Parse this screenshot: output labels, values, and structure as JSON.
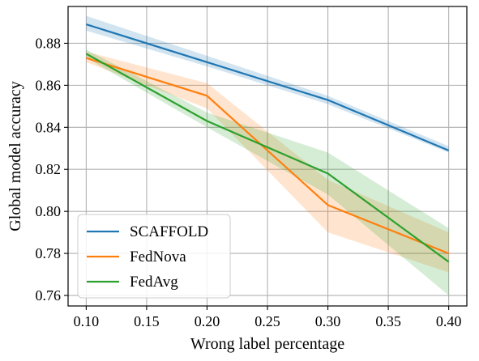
{
  "chart_data": {
    "type": "line",
    "xlabel": "Wrong label percentage",
    "ylabel": "Global model accuracy",
    "xlim": [
      0.085,
      0.415
    ],
    "ylim": [
      0.755,
      0.8975
    ],
    "xticks": [
      0.1,
      0.15,
      0.2,
      0.25,
      0.3,
      0.35,
      0.4
    ],
    "yticks": [
      0.76,
      0.78,
      0.8,
      0.82,
      0.84,
      0.86,
      0.88
    ],
    "grid": true,
    "legend_position": "lower-left",
    "x": [
      0.1,
      0.2,
      0.3,
      0.4
    ],
    "series": [
      {
        "name": "SCAFFOLD",
        "color": "#1f77b4",
        "values": [
          0.889,
          0.871,
          0.853,
          0.829
        ],
        "band_low": [
          0.886,
          0.869,
          0.851,
          0.828
        ],
        "band_high": [
          0.893,
          0.874,
          0.855,
          0.831
        ]
      },
      {
        "name": "FedNova",
        "color": "#ff7f0e",
        "values": [
          0.873,
          0.855,
          0.803,
          0.78
        ],
        "band_low": [
          0.871,
          0.849,
          0.79,
          0.771
        ],
        "band_high": [
          0.876,
          0.861,
          0.815,
          0.79
        ]
      },
      {
        "name": "FedAvg",
        "color": "#2ca02c",
        "values": [
          0.875,
          0.843,
          0.818,
          0.776
        ],
        "band_low": [
          0.873,
          0.84,
          0.808,
          0.76
        ],
        "band_high": [
          0.877,
          0.847,
          0.828,
          0.792
        ]
      }
    ]
  }
}
